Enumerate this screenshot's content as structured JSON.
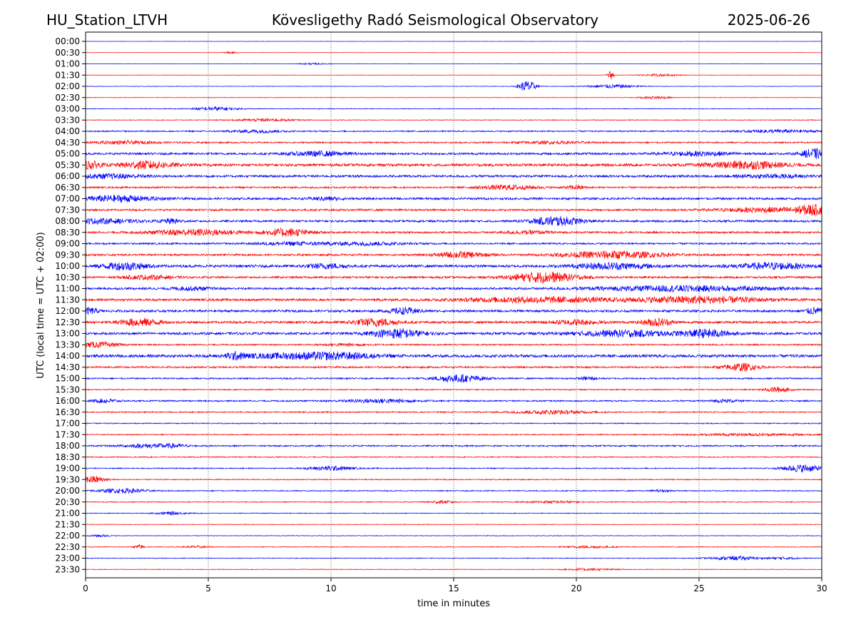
{
  "chart_data": {
    "type": "line",
    "title": "Kövesligethy Radó Seismological Observatory",
    "header_left": "HU_Station_LTVH",
    "header_right": "2025-06-26",
    "xlabel": "time in minutes",
    "ylabel": "UTC (local time = UTC + 02:00)",
    "xlim": [
      0,
      30
    ],
    "x_ticks": [
      0,
      5,
      10,
      15,
      20,
      25,
      30
    ],
    "grid": "vertical dotted lines at 5-minute ticks",
    "colors": {
      "blue_trace": "#0000ff",
      "red_trace": "#ff0000",
      "axes": "#000000",
      "grid": "#000000"
    },
    "rows": [
      {
        "label": "00:00",
        "color": "blue",
        "base": 0.2,
        "bursts": []
      },
      {
        "label": "00:30",
        "color": "red",
        "base": 0.2,
        "bursts": [
          {
            "t": 5.9,
            "amp": 1.2,
            "dur": 0.3
          }
        ]
      },
      {
        "label": "01:00",
        "color": "blue",
        "base": 0.25,
        "bursts": [
          {
            "t": 9.3,
            "amp": 1.0,
            "dur": 0.6
          }
        ]
      },
      {
        "label": "01:30",
        "color": "red",
        "base": 0.25,
        "bursts": [
          {
            "t": 21.4,
            "amp": 6.5,
            "dur": 0.12
          },
          {
            "t": 23.4,
            "amp": 1.5,
            "dur": 0.8
          }
        ]
      },
      {
        "label": "02:00",
        "color": "blue",
        "base": 0.35,
        "bursts": [
          {
            "t": 18.0,
            "amp": 8.0,
            "dur": 0.35
          },
          {
            "t": 21.5,
            "amp": 2.5,
            "dur": 1.0
          }
        ]
      },
      {
        "label": "02:30",
        "color": "red",
        "base": 0.35,
        "bursts": [
          {
            "t": 23.2,
            "amp": 1.8,
            "dur": 0.6
          }
        ]
      },
      {
        "label": "03:00",
        "color": "blue",
        "base": 0.45,
        "bursts": [
          {
            "t": 5.3,
            "amp": 2.5,
            "dur": 0.9
          }
        ]
      },
      {
        "label": "03:30",
        "color": "red",
        "base": 0.5,
        "bursts": [
          {
            "t": 7.3,
            "amp": 1.8,
            "dur": 1.2
          }
        ]
      },
      {
        "label": "04:00",
        "color": "blue",
        "base": 0.9,
        "bursts": [
          {
            "t": 7.0,
            "amp": 2.0,
            "dur": 1.0
          },
          {
            "t": 28.2,
            "amp": 1.8,
            "dur": 1.5
          }
        ]
      },
      {
        "label": "04:30",
        "color": "red",
        "base": 1.0,
        "bursts": [
          {
            "t": 1.5,
            "amp": 1.8,
            "dur": 1.5
          },
          {
            "t": 19.0,
            "amp": 1.5,
            "dur": 1.5
          }
        ]
      },
      {
        "label": "05:00",
        "color": "blue",
        "base": 1.5,
        "bursts": [
          {
            "t": 9.5,
            "amp": 3.0,
            "dur": 1.2
          },
          {
            "t": 25.0,
            "amp": 2.5,
            "dur": 1.5
          },
          {
            "t": 29.7,
            "amp": 6.5,
            "dur": 0.5
          }
        ]
      },
      {
        "label": "05:30",
        "color": "red",
        "base": 1.8,
        "bursts": [
          {
            "t": 0.2,
            "amp": 5.0,
            "dur": 0.4
          },
          {
            "t": 2.5,
            "amp": 5.0,
            "dur": 1.0
          },
          {
            "t": 27.0,
            "amp": 5.0,
            "dur": 1.5
          }
        ]
      },
      {
        "label": "06:00",
        "color": "blue",
        "base": 1.6,
        "bursts": [
          {
            "t": 1.0,
            "amp": 2.5,
            "dur": 1.5
          },
          {
            "t": 28.0,
            "amp": 2.0,
            "dur": 1.5
          }
        ]
      },
      {
        "label": "06:30",
        "color": "red",
        "base": 1.2,
        "bursts": [
          {
            "t": 17.2,
            "amp": 3.0,
            "dur": 1.2
          },
          {
            "t": 20.0,
            "amp": 2.5,
            "dur": 0.4
          }
        ]
      },
      {
        "label": "07:00",
        "color": "blue",
        "base": 1.5,
        "bursts": [
          {
            "t": 1.3,
            "amp": 4.0,
            "dur": 1.5
          },
          {
            "t": 9.8,
            "amp": 2.0,
            "dur": 0.6
          }
        ]
      },
      {
        "label": "07:30",
        "color": "red",
        "base": 1.3,
        "bursts": [
          {
            "t": 27.8,
            "amp": 3.0,
            "dur": 2.0
          },
          {
            "t": 29.6,
            "amp": 6.0,
            "dur": 0.6
          }
        ]
      },
      {
        "label": "08:00",
        "color": "blue",
        "base": 1.4,
        "bursts": [
          {
            "t": 0.5,
            "amp": 3.0,
            "dur": 1.5
          },
          {
            "t": 3.5,
            "amp": 3.0,
            "dur": 0.4
          },
          {
            "t": 19.2,
            "amp": 6.0,
            "dur": 1.0
          }
        ]
      },
      {
        "label": "08:30",
        "color": "red",
        "base": 1.3,
        "bursts": [
          {
            "t": 4.5,
            "amp": 4.0,
            "dur": 1.8
          },
          {
            "t": 8.2,
            "amp": 5.0,
            "dur": 0.9
          },
          {
            "t": 18.0,
            "amp": 2.0,
            "dur": 1.0
          }
        ]
      },
      {
        "label": "09:00",
        "color": "blue",
        "base": 1.2,
        "bursts": [
          {
            "t": 8.5,
            "amp": 2.0,
            "dur": 1.5
          },
          {
            "t": 11.5,
            "amp": 2.0,
            "dur": 1.5
          }
        ]
      },
      {
        "label": "09:30",
        "color": "red",
        "base": 1.3,
        "bursts": [
          {
            "t": 15.3,
            "amp": 4.0,
            "dur": 1.0
          },
          {
            "t": 21.5,
            "amp": 5.0,
            "dur": 2.0
          }
        ]
      },
      {
        "label": "10:00",
        "color": "blue",
        "base": 1.8,
        "bursts": [
          {
            "t": 1.6,
            "amp": 5.0,
            "dur": 0.9
          },
          {
            "t": 9.8,
            "amp": 3.0,
            "dur": 0.8
          },
          {
            "t": 21.5,
            "amp": 4.0,
            "dur": 1.5
          },
          {
            "t": 28.0,
            "amp": 4.0,
            "dur": 1.5
          }
        ]
      },
      {
        "label": "10:30",
        "color": "red",
        "base": 1.4,
        "bursts": [
          {
            "t": 2.5,
            "amp": 2.5,
            "dur": 1.0
          },
          {
            "t": 18.7,
            "amp": 7.0,
            "dur": 1.3
          }
        ]
      },
      {
        "label": "11:00",
        "color": "blue",
        "base": 1.5,
        "bursts": [
          {
            "t": 4.3,
            "amp": 2.0,
            "dur": 0.8
          },
          {
            "t": 24.3,
            "amp": 3.5,
            "dur": 3.5
          }
        ]
      },
      {
        "label": "11:30",
        "color": "red",
        "base": 1.6,
        "bursts": [
          {
            "t": 18.5,
            "amp": 3.5,
            "dur": 3.0
          },
          {
            "t": 25.0,
            "amp": 4.5,
            "dur": 2.5
          }
        ]
      },
      {
        "label": "12:00",
        "color": "blue",
        "base": 1.6,
        "bursts": [
          {
            "t": 0.1,
            "amp": 4.0,
            "dur": 0.4
          },
          {
            "t": 13.0,
            "amp": 4.0,
            "dur": 0.6
          },
          {
            "t": 29.7,
            "amp": 4.0,
            "dur": 0.4
          }
        ]
      },
      {
        "label": "12:30",
        "color": "red",
        "base": 1.6,
        "bursts": [
          {
            "t": 2.2,
            "amp": 5.0,
            "dur": 0.8
          },
          {
            "t": 11.8,
            "amp": 5.0,
            "dur": 0.9
          },
          {
            "t": 20.0,
            "amp": 3.0,
            "dur": 1.0
          },
          {
            "t": 23.3,
            "amp": 5.0,
            "dur": 0.6
          }
        ]
      },
      {
        "label": "13:00",
        "color": "blue",
        "base": 1.7,
        "bursts": [
          {
            "t": 12.7,
            "amp": 6.0,
            "dur": 1.0
          },
          {
            "t": 22.0,
            "amp": 4.0,
            "dur": 2.0
          },
          {
            "t": 25.3,
            "amp": 5.0,
            "dur": 0.9
          }
        ]
      },
      {
        "label": "13:30",
        "color": "red",
        "base": 1.0,
        "bursts": [
          {
            "t": 0.5,
            "amp": 3.5,
            "dur": 0.8
          },
          {
            "t": 10.5,
            "amp": 1.5,
            "dur": 1.0
          }
        ]
      },
      {
        "label": "14:00",
        "color": "blue",
        "base": 2.0,
        "bursts": [
          {
            "t": 6.1,
            "amp": 4.0,
            "dur": 0.4
          },
          {
            "t": 8.5,
            "amp": 3.0,
            "dur": 2.0
          },
          {
            "t": 10.5,
            "amp": 3.0,
            "dur": 1.5
          }
        ]
      },
      {
        "label": "14:30",
        "color": "red",
        "base": 1.2,
        "bursts": [
          {
            "t": 26.7,
            "amp": 5.0,
            "dur": 0.7
          }
        ]
      },
      {
        "label": "15:00",
        "color": "blue",
        "base": 1.0,
        "bursts": [
          {
            "t": 15.2,
            "amp": 5.0,
            "dur": 1.0
          },
          {
            "t": 20.5,
            "amp": 2.0,
            "dur": 0.4
          }
        ]
      },
      {
        "label": "15:30",
        "color": "red",
        "base": 0.8,
        "bursts": [
          {
            "t": 28.2,
            "amp": 3.5,
            "dur": 0.5
          }
        ]
      },
      {
        "label": "16:00",
        "color": "blue",
        "base": 1.0,
        "bursts": [
          {
            "t": 0.8,
            "amp": 2.5,
            "dur": 0.5
          },
          {
            "t": 12.0,
            "amp": 2.5,
            "dur": 1.5
          },
          {
            "t": 26.0,
            "amp": 1.8,
            "dur": 0.6
          }
        ]
      },
      {
        "label": "16:30",
        "color": "red",
        "base": 0.8,
        "bursts": [
          {
            "t": 19.0,
            "amp": 2.5,
            "dur": 1.5
          }
        ]
      },
      {
        "label": "17:00",
        "color": "blue",
        "base": 0.7,
        "bursts": []
      },
      {
        "label": "17:30",
        "color": "red",
        "base": 0.7,
        "bursts": [
          {
            "t": 27.0,
            "amp": 1.5,
            "dur": 2.5
          }
        ]
      },
      {
        "label": "18:00",
        "color": "blue",
        "base": 1.0,
        "bursts": [
          {
            "t": 2.5,
            "amp": 2.5,
            "dur": 1.0
          },
          {
            "t": 3.6,
            "amp": 2.0,
            "dur": 0.5
          }
        ]
      },
      {
        "label": "18:30",
        "color": "red",
        "base": 0.7,
        "bursts": []
      },
      {
        "label": "19:00",
        "color": "blue",
        "base": 0.7,
        "bursts": [
          {
            "t": 10.0,
            "amp": 3.0,
            "dur": 0.9
          },
          {
            "t": 29.2,
            "amp": 5.0,
            "dur": 0.8
          }
        ]
      },
      {
        "label": "19:30",
        "color": "red",
        "base": 0.7,
        "bursts": [
          {
            "t": 0.3,
            "amp": 5.0,
            "dur": 0.5
          }
        ]
      },
      {
        "label": "20:00",
        "color": "blue",
        "base": 0.7,
        "bursts": [
          {
            "t": 1.5,
            "amp": 3.0,
            "dur": 1.0
          },
          {
            "t": 23.5,
            "amp": 1.5,
            "dur": 0.4
          }
        ]
      },
      {
        "label": "20:30",
        "color": "red",
        "base": 0.6,
        "bursts": [
          {
            "t": 14.5,
            "amp": 2.0,
            "dur": 0.5
          },
          {
            "t": 19.0,
            "amp": 1.5,
            "dur": 1.0
          }
        ]
      },
      {
        "label": "21:00",
        "color": "blue",
        "base": 0.5,
        "bursts": [
          {
            "t": 3.5,
            "amp": 2.0,
            "dur": 0.6
          }
        ]
      },
      {
        "label": "21:30",
        "color": "red",
        "base": 0.4,
        "bursts": []
      },
      {
        "label": "22:00",
        "color": "blue",
        "base": 0.4,
        "bursts": [
          {
            "t": 0.6,
            "amp": 1.5,
            "dur": 0.4
          }
        ]
      },
      {
        "label": "22:30",
        "color": "red",
        "base": 0.5,
        "bursts": [
          {
            "t": 2.2,
            "amp": 3.0,
            "dur": 0.2
          },
          {
            "t": 4.5,
            "amp": 1.5,
            "dur": 0.5
          },
          {
            "t": 20.5,
            "amp": 1.5,
            "dur": 1.0
          }
        ]
      },
      {
        "label": "23:00",
        "color": "blue",
        "base": 0.5,
        "bursts": [
          {
            "t": 26.5,
            "amp": 2.5,
            "dur": 1.0
          },
          {
            "t": 28.5,
            "amp": 1.5,
            "dur": 0.6
          }
        ]
      },
      {
        "label": "23:30",
        "color": "red",
        "base": 0.4,
        "bursts": [
          {
            "t": 20.5,
            "amp": 1.5,
            "dur": 1.0
          }
        ]
      }
    ]
  }
}
